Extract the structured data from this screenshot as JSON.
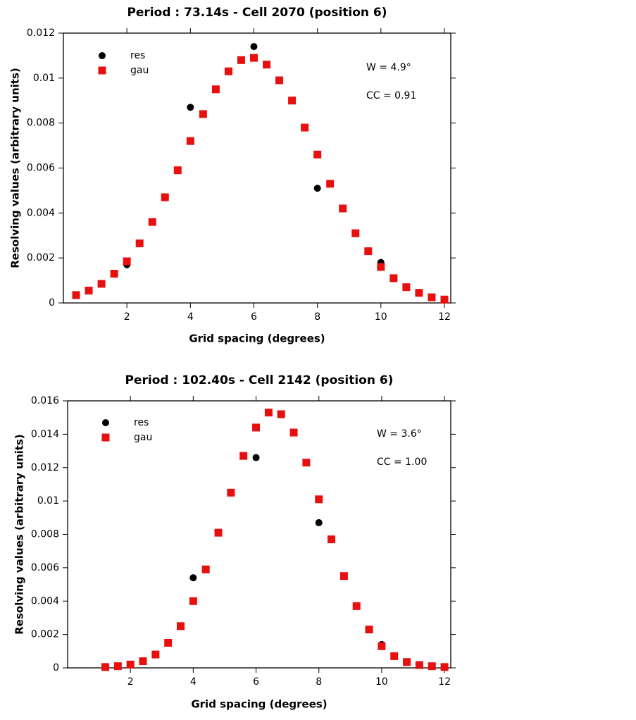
{
  "chart_data": [
    {
      "type": "scatter",
      "title": "Period : 73.14s - Cell 2070 (position 6)",
      "x_label": "Grid spacing (degrees)",
      "y_label": "Resolving values (arbitrary units)",
      "annotations": [
        "W = 4.9°",
        "CC = 0.91"
      ],
      "legend": "upper left",
      "xlim": [
        0,
        12.2
      ],
      "xticks": [
        2,
        4,
        6,
        8,
        10,
        12
      ],
      "ylim": [
        0,
        0.012
      ],
      "yticks": [
        0,
        0.002,
        0.004,
        0.006,
        0.008,
        0.01,
        0.012
      ],
      "series": [
        {
          "name": "res",
          "color": "#000000",
          "marker": "circle",
          "x": [
            2,
            4,
            6,
            8,
            10
          ],
          "values": [
            0.0017,
            0.0087,
            0.0114,
            0.0051,
            0.0018
          ]
        },
        {
          "name": "gau",
          "color": "#e8100e",
          "marker": "square",
          "x": [
            0.4,
            0.8,
            1.2,
            1.6,
            2.0,
            2.4,
            2.8,
            3.2,
            3.6,
            4.0,
            4.4,
            4.8,
            5.2,
            5.6,
            6.0,
            6.4,
            6.8,
            7.2,
            7.6,
            8.0,
            8.4,
            8.8,
            9.2,
            9.6,
            10.0,
            10.4,
            10.8,
            11.2,
            11.6,
            12.0
          ],
          "values": [
            0.00035,
            0.00055,
            0.00085,
            0.0013,
            0.00185,
            0.00265,
            0.0036,
            0.0047,
            0.0059,
            0.0072,
            0.0084,
            0.0095,
            0.0103,
            0.0108,
            0.0109,
            0.0106,
            0.0099,
            0.009,
            0.0078,
            0.0066,
            0.0053,
            0.0042,
            0.0031,
            0.0023,
            0.0016,
            0.0011,
            0.0007,
            0.00045,
            0.00025,
            0.00015
          ]
        }
      ]
    },
    {
      "type": "scatter",
      "title": "Period : 102.40s - Cell 2142 (position 6)",
      "x_label": "Grid spacing (degrees)",
      "y_label": "Resolving values (arbitrary units)",
      "annotations": [
        "W = 3.6°",
        "CC = 1.00"
      ],
      "legend": "upper left",
      "xlim": [
        0,
        12.2
      ],
      "xticks": [
        2,
        4,
        6,
        8,
        10,
        12
      ],
      "ylim": [
        0,
        0.016
      ],
      "yticks": [
        0,
        0.002,
        0.004,
        0.006,
        0.008,
        0.01,
        0.012,
        0.014,
        0.016
      ],
      "series": [
        {
          "name": "res",
          "color": "#000000",
          "marker": "circle",
          "x": [
            4,
            6,
            8,
            10
          ],
          "values": [
            0.0054,
            0.0126,
            0.0087,
            0.0014
          ]
        },
        {
          "name": "gau",
          "color": "#e8100e",
          "marker": "square",
          "x": [
            1.2,
            1.6,
            2.0,
            2.4,
            2.8,
            3.2,
            3.6,
            4.0,
            4.4,
            4.8,
            5.2,
            5.6,
            6.0,
            6.4,
            6.8,
            7.2,
            7.6,
            8.0,
            8.4,
            8.8,
            9.2,
            9.6,
            10.0,
            10.4,
            10.8,
            11.2,
            11.6,
            12.0
          ],
          "values": [
            5e-05,
            0.0001,
            0.0002,
            0.0004,
            0.0008,
            0.0015,
            0.0025,
            0.004,
            0.0059,
            0.0081,
            0.0105,
            0.0127,
            0.0144,
            0.0153,
            0.0152,
            0.0141,
            0.0123,
            0.0101,
            0.0077,
            0.0055,
            0.0037,
            0.0023,
            0.0013,
            0.0007,
            0.00035,
            0.00017,
            0.0001,
            5e-05
          ]
        }
      ]
    }
  ]
}
